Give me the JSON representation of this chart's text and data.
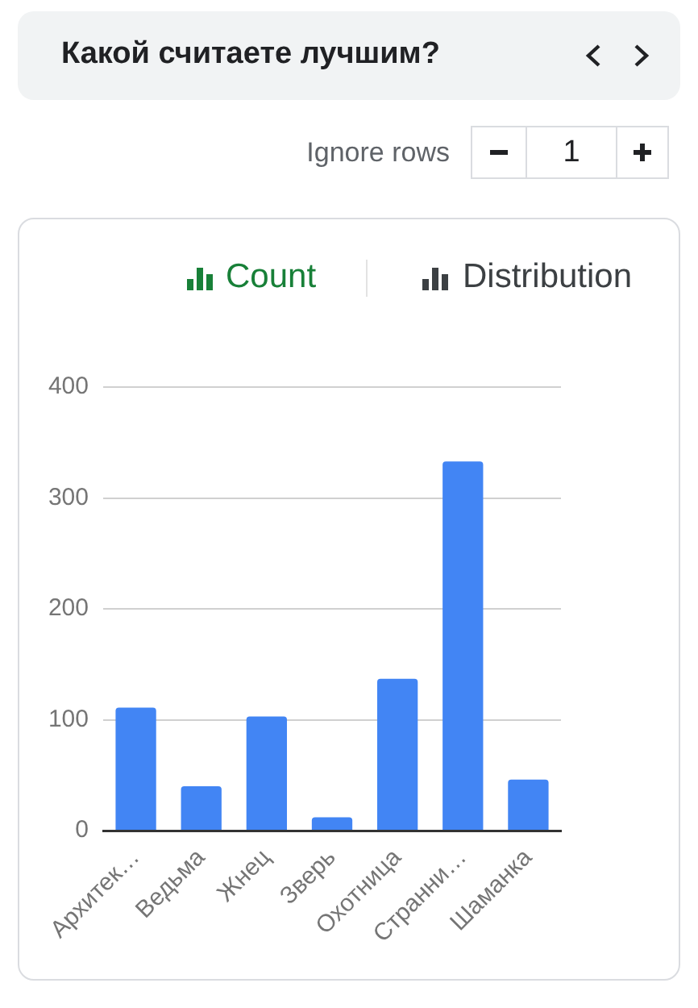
{
  "chart_data": {
    "type": "bar",
    "title": "Какой считаете лучшим?",
    "categories": [
      "Архитек…",
      "Ведьма",
      "Жнец",
      "Зверь",
      "Охотница",
      "Странни…",
      "Шаманка"
    ],
    "values": [
      111,
      40,
      103,
      12,
      137,
      333,
      46
    ],
    "color": "#4285f4",
    "ylim": [
      0,
      400
    ],
    "yticks": [
      0,
      100,
      200,
      300,
      400
    ],
    "grid": "y",
    "annotations": [
      "Ignore rows",
      "1",
      "Count",
      "Distribution"
    ]
  }
}
